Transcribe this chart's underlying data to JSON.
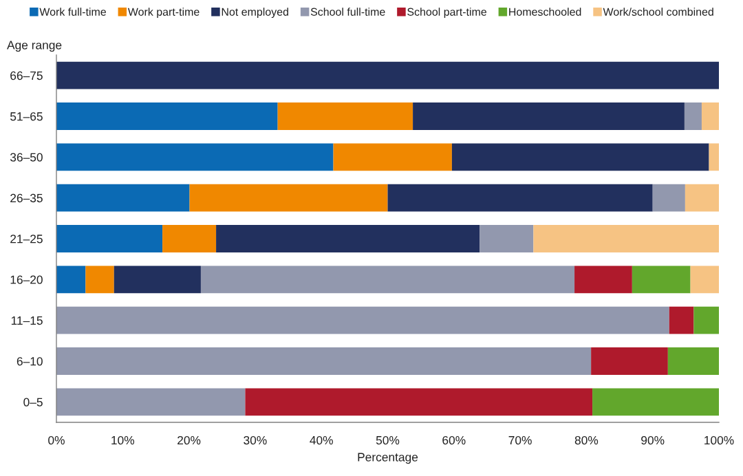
{
  "chart_data": {
    "type": "bar",
    "orientation": "horizontal",
    "stacked": true,
    "xlabel": "Percentage",
    "ylabel": "Age range",
    "legend": "top",
    "categories": [
      "66–75",
      "51–65",
      "36–50",
      "26–35",
      "21–25",
      "16–20",
      "11–15",
      "6–10",
      "0–5"
    ],
    "series": [
      {
        "name": "Work full-time",
        "color": "#0b6ab4",
        "values": [
          0,
          33.4,
          41.8,
          20.1,
          16.0,
          4.4,
          0,
          0,
          0
        ]
      },
      {
        "name": "Work part-time",
        "color": "#f08800",
        "values": [
          0,
          20.4,
          17.9,
          29.9,
          8.1,
          4.3,
          0,
          0,
          0
        ]
      },
      {
        "name": "Not employed",
        "color": "#22305e",
        "values": [
          100,
          41.0,
          38.8,
          40.0,
          39.8,
          13.1,
          0,
          0,
          0
        ]
      },
      {
        "name": "School full-time",
        "color": "#9298ae",
        "values": [
          0,
          2.6,
          0,
          4.9,
          8.1,
          56.4,
          92.5,
          80.7,
          28.5
        ]
      },
      {
        "name": "School part-time",
        "color": "#af1a2c",
        "values": [
          0,
          0,
          0,
          0,
          0,
          8.7,
          3.7,
          11.6,
          52.4
        ]
      },
      {
        "name": "Homeschooled",
        "color": "#62a72c",
        "values": [
          0,
          0,
          0,
          0,
          0,
          8.8,
          3.8,
          7.7,
          19.1
        ]
      },
      {
        "name": "Work/school combined",
        "color": "#f6c383",
        "values": [
          0,
          2.6,
          1.5,
          5.1,
          28.0,
          4.3,
          0,
          0,
          0
        ]
      }
    ],
    "xlim": [
      0,
      100
    ],
    "xticks": [
      {
        "value": 0,
        "label": "0%"
      },
      {
        "value": 10,
        "label": "10%"
      },
      {
        "value": 20,
        "label": "20%"
      },
      {
        "value": 30,
        "label": "30%"
      },
      {
        "value": 40,
        "label": "40%"
      },
      {
        "value": 50,
        "label": "50%"
      },
      {
        "value": 60,
        "label": "60%"
      },
      {
        "value": 70,
        "label": "70%"
      },
      {
        "value": 80,
        "label": "80%"
      },
      {
        "value": 90,
        "label": "90%"
      },
      {
        "value": 100,
        "label": "100%"
      }
    ]
  }
}
